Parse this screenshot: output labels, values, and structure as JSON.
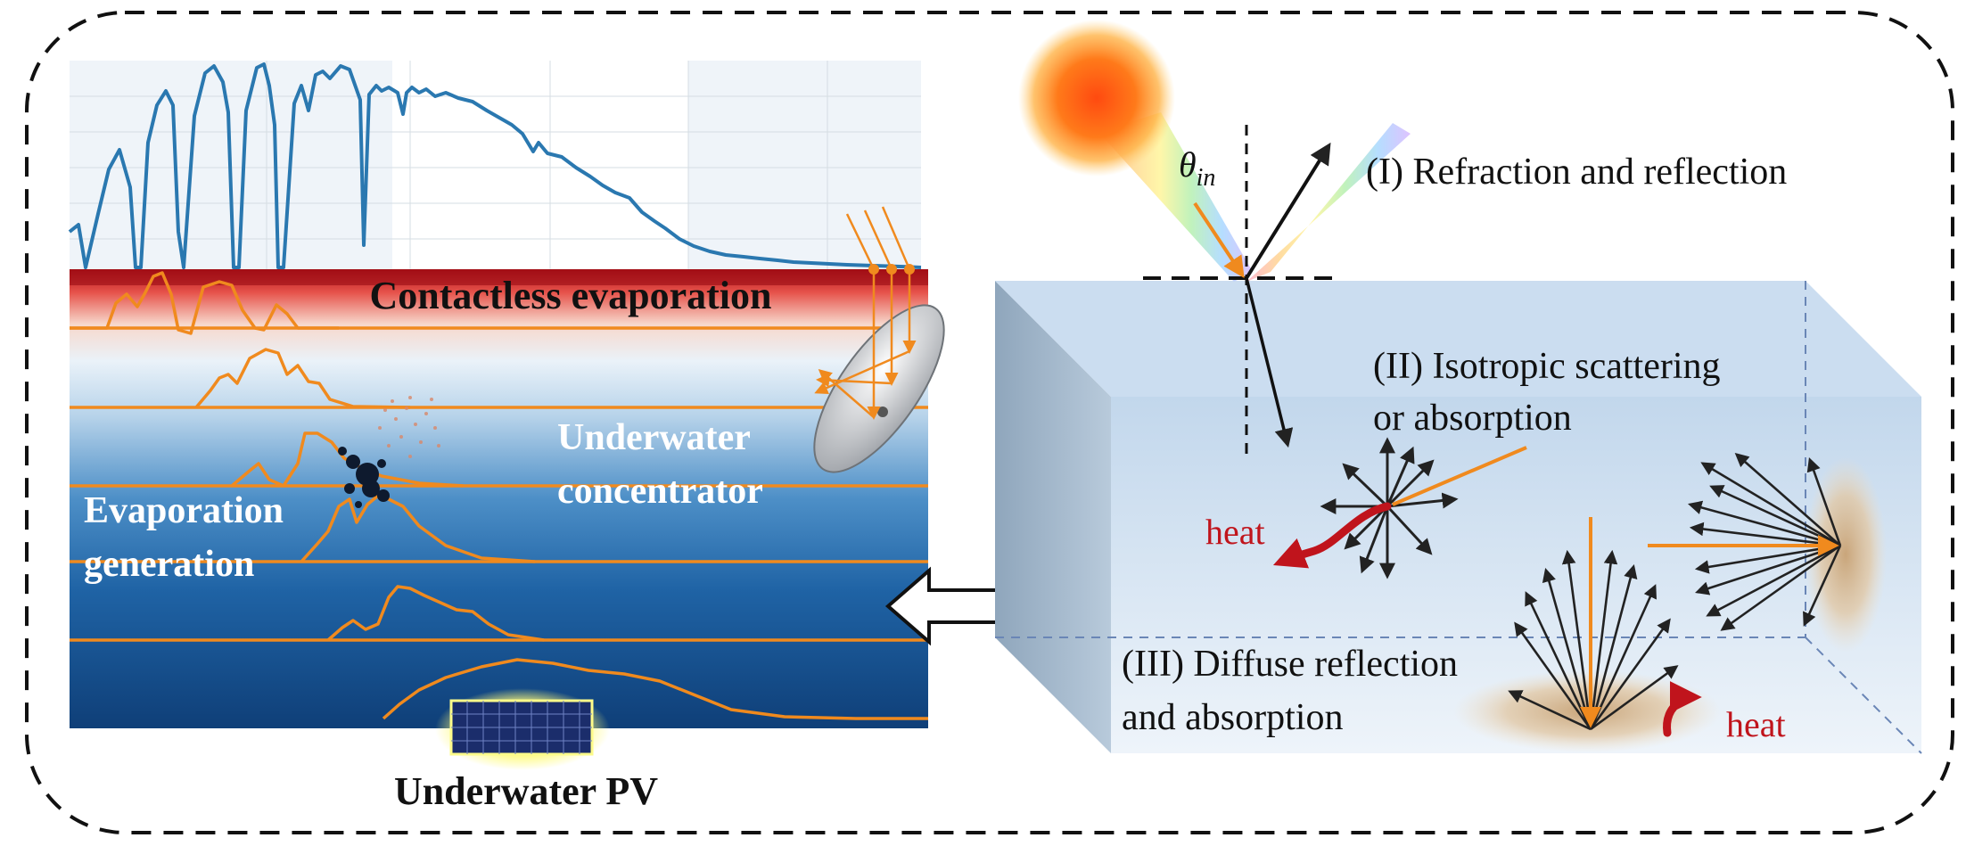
{
  "labels": {
    "contactless": "Contactless evaporation",
    "underwater_concentrator_1": "Underwater",
    "underwater_concentrator_2": "concentrator",
    "evaporation_gen_1": "Evaporation",
    "evaporation_gen_2": "generation",
    "underwater_pv": "Underwater PV",
    "refraction": "(I) Refraction and reflection",
    "scattering_1": "(II) Isotropic scattering",
    "scattering_2": "or absorption",
    "diffuse_1": "(III) Diffuse reflection",
    "diffuse_2": "and absorption",
    "heat_1": "heat",
    "heat_2": "heat",
    "theta": "θ",
    "theta_sub": "in"
  },
  "colors": {
    "spectrum": "#2a78b0",
    "spectrum_orange": "#f08a1e",
    "heat_red": "#c0141c",
    "water_light": "#d6e6f4",
    "water_deep": "#124a86",
    "box": "#c9dcef",
    "box_side": "#9fb4c8",
    "dashed_border": "#111111"
  },
  "icons": {
    "sun": "sun-icon",
    "dish": "satellite-dish-icon",
    "panel": "solar-panel-icon",
    "arrow": "left-arrow-icon",
    "bubbles": "bubbles-icon"
  }
}
